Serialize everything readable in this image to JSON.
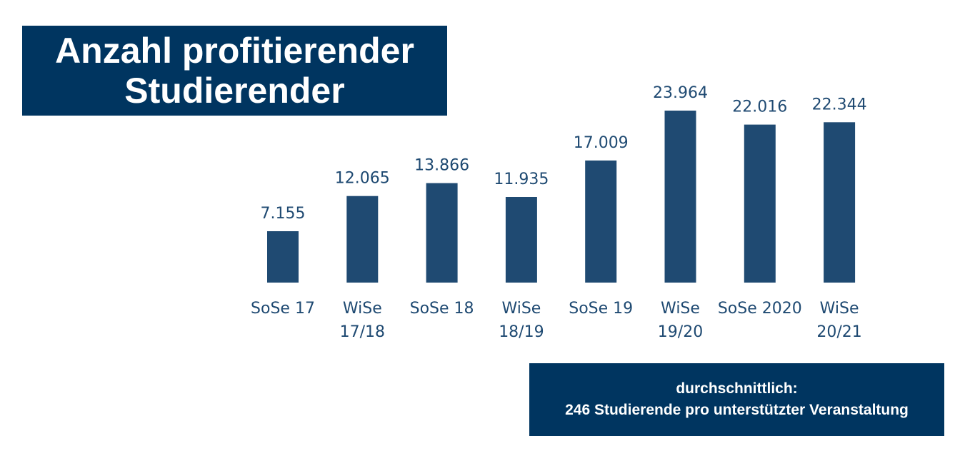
{
  "title": {
    "line1": "Anzahl profitierender",
    "line2": "Studierender"
  },
  "note": {
    "line1": "durchschnittlich:",
    "line2": "246 Studierende pro unterstützter Veranstaltung"
  },
  "colors": {
    "bar": "#1f4a72",
    "box": "#003560",
    "text": "#1f4a72"
  },
  "chart_data": {
    "type": "bar",
    "title": "Anzahl profitierender Studierender",
    "categories": [
      [
        "SoSe 17"
      ],
      [
        "WiSe",
        "17/18"
      ],
      [
        "SoSe 18"
      ],
      [
        "WiSe",
        "18/19"
      ],
      [
        "SoSe 19"
      ],
      [
        "WiSe",
        "19/20"
      ],
      [
        "SoSe 2020"
      ],
      [
        "WiSe",
        "20/21"
      ]
    ],
    "values": [
      7155,
      12065,
      13866,
      11935,
      17009,
      23964,
      22016,
      22344
    ],
    "data_labels": [
      "7.155",
      "12.065",
      "13.866",
      "11.935",
      "17.009",
      "23.964",
      "22.016",
      "22.344"
    ],
    "xlabel": "",
    "ylabel": "",
    "ylim": [
      0,
      23964
    ],
    "grid": false,
    "legend": "none"
  }
}
